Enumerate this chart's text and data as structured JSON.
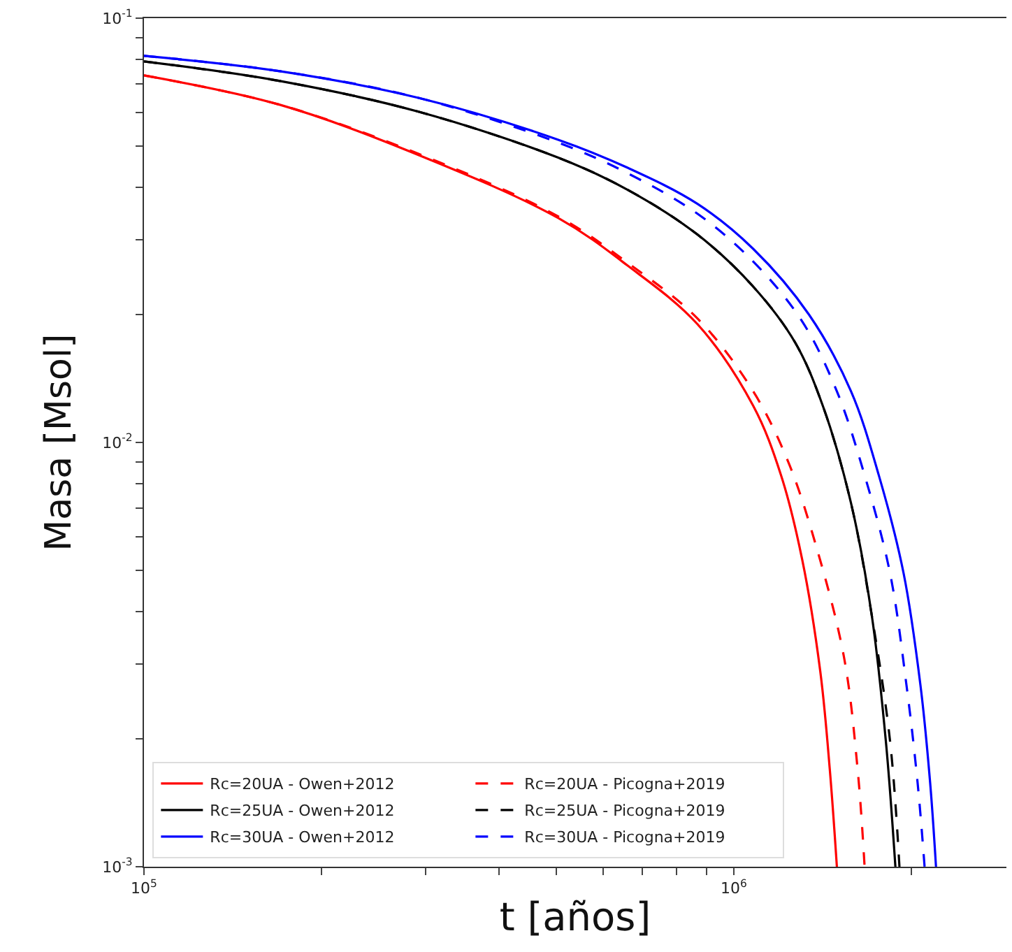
{
  "chart_data": {
    "type": "line",
    "xlabel": "t [años]",
    "ylabel": "Masa [Msol]",
    "log": "xy",
    "legend": "bottom left",
    "marker": "none",
    "xlim": [
      100000,
      2900000
    ],
    "xticks": [
      {
        "value": 100000,
        "label": "10$^{5}$"
      },
      {
        "value": 200000,
        "label": null
      },
      {
        "value": 300000,
        "label": null
      },
      {
        "value": 400000,
        "label": null
      },
      {
        "value": 500000,
        "label": null
      },
      {
        "value": 600000,
        "label": null
      },
      {
        "value": 700000,
        "label": null
      },
      {
        "value": 800000,
        "label": null
      },
      {
        "value": 900000,
        "label": null
      },
      {
        "value": 1000000,
        "label": "10$^{6}$"
      },
      {
        "value": 2000000,
        "label": null
      }
    ],
    "ylim": [
      0.001,
      0.1
    ],
    "yticks": [
      {
        "value": 0.001,
        "label": "10$^{-3}$"
      },
      {
        "value": 0.002,
        "label": null
      },
      {
        "value": 0.003,
        "label": null
      },
      {
        "value": 0.004,
        "label": null
      },
      {
        "value": 0.005,
        "label": null
      },
      {
        "value": 0.006,
        "label": null
      },
      {
        "value": 0.007,
        "label": null
      },
      {
        "value": 0.008,
        "label": null
      },
      {
        "value": 0.009,
        "label": null
      },
      {
        "value": 0.01,
        "label": "10$^{-2}$"
      },
      {
        "value": 0.02,
        "label": null
      },
      {
        "value": 0.03,
        "label": null
      },
      {
        "value": 0.04,
        "label": null
      },
      {
        "value": 0.05,
        "label": null
      },
      {
        "value": 0.06,
        "label": null
      },
      {
        "value": 0.07,
        "label": null
      },
      {
        "value": 0.08,
        "label": null
      },
      {
        "value": 0.09,
        "label": null
      },
      {
        "value": 0.1,
        "label": "10$^{-1}$"
      }
    ],
    "series": [
      {
        "name": "Rc=20UA - Owen+2012",
        "color": "#ff0000",
        "line_style": "solid",
        "x": [
          100000,
          170000,
          292000,
          504000,
          661000,
          868000,
          1079000,
          1203000,
          1306000,
          1402000,
          1455000,
          1496000
        ],
        "values": [
          0.0733,
          0.0625,
          0.0476,
          0.0338,
          0.0261,
          0.019,
          0.0122,
          0.00837,
          0.00531,
          0.00289,
          0.0017,
          0.001
        ]
      },
      {
        "name": "Rc=20UA - Picogna+2019",
        "color": "#ff0000",
        "line_style": "dashed",
        "x": [
          100000,
          170000,
          292000,
          504000,
          661000,
          868000,
          1079000,
          1236000,
          1378000,
          1538000,
          1622000,
          1667000
        ],
        "values": [
          0.0733,
          0.0625,
          0.0479,
          0.0341,
          0.0265,
          0.0196,
          0.0132,
          0.00903,
          0.00573,
          0.00312,
          0.0017,
          0.001
        ]
      },
      {
        "name": "Rc=25UA - Owen+2012",
        "color": "#000000",
        "line_style": "solid",
        "x": [
          100000,
          170000,
          292000,
          504000,
          661000,
          868000,
          1079000,
          1271000,
          1416000,
          1581000,
          1714000,
          1811000,
          1880000
        ],
        "values": [
          0.0791,
          0.0711,
          0.0602,
          0.0469,
          0.0394,
          0.0309,
          0.0233,
          0.0172,
          0.0122,
          0.00719,
          0.00392,
          0.00198,
          0.001
        ]
      },
      {
        "name": "Rc=25UA - Picogna+2019",
        "color": "#000000",
        "line_style": "dashed",
        "x": [
          100000,
          170000,
          292000,
          504000,
          661000,
          868000,
          1079000,
          1271000,
          1416000,
          1581000,
          1714000,
          1841000,
          1910000
        ],
        "values": [
          0.0791,
          0.0711,
          0.0602,
          0.0469,
          0.0394,
          0.0309,
          0.0233,
          0.0172,
          0.0122,
          0.00719,
          0.00392,
          0.00198,
          0.001
        ]
      },
      {
        "name": "Rc=30UA - Owen+2012",
        "color": "#0000ff",
        "line_style": "solid",
        "x": [
          100000,
          170000,
          292000,
          504000,
          661000,
          868000,
          1079000,
          1342000,
          1581000,
          1762000,
          1941000,
          2073000,
          2153000,
          2203000
        ],
        "values": [
          0.0815,
          0.075,
          0.0649,
          0.0517,
          0.0444,
          0.0365,
          0.0286,
          0.02,
          0.0132,
          0.00837,
          0.00492,
          0.00268,
          0.00158,
          0.001
        ]
      },
      {
        "name": "Rc=30UA - Picogna+2019",
        "color": "#0000ff",
        "line_style": "dashed",
        "x": [
          100000,
          170000,
          292000,
          504000,
          661000,
          868000,
          1079000,
          1306000,
          1496000,
          1667000,
          1841000,
          1963000,
          2050000,
          2107000
        ],
        "values": [
          0.0815,
          0.075,
          0.0649,
          0.0509,
          0.0431,
          0.0346,
          0.0267,
          0.0193,
          0.0132,
          0.00837,
          0.00492,
          0.00268,
          0.00158,
          0.001
        ]
      }
    ]
  }
}
